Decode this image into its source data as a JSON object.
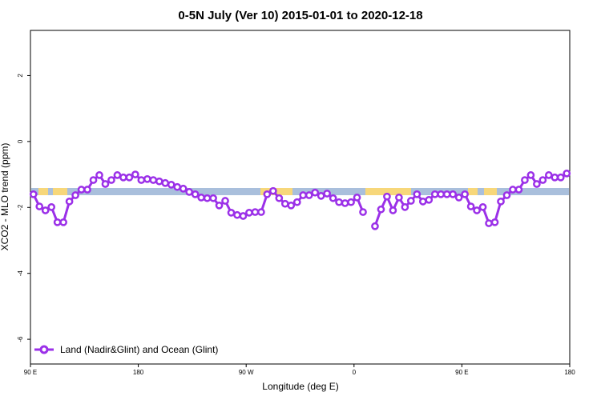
{
  "chart_data": {
    "type": "line",
    "title": "0-5N July (Ver 10)   2015-01-01 to 2020-12-18",
    "x_label": "Longitude (deg E)",
    "y_label": "XCO2 - MLO trend (ppm)",
    "xlim": [
      90,
      540
    ],
    "ylim": [
      -6.75,
      3.37
    ],
    "xticks": [
      {
        "value": 90,
        "label": "90 E"
      },
      180,
      {
        "value": 270,
        "label": "90 W"
      },
      {
        "value": 360,
        "label": "0"
      },
      {
        "value": 450,
        "label": "90 E"
      },
      {
        "value": 540,
        "label": "180"
      }
    ],
    "yticks": [
      2,
      0,
      -2,
      -4,
      -6
    ],
    "legend": "bottom-left",
    "x": [
      92.5,
      97.5,
      102.5,
      107.5,
      112.5,
      117.5,
      122.5,
      127.5,
      132.5,
      137.5,
      142.5,
      147.5,
      152.5,
      157.5,
      162.5,
      167.5,
      172.5,
      177.5,
      182.5,
      187.5,
      192.5,
      197.5,
      202.5,
      207.5,
      212.5,
      217.5,
      222.5,
      227.5,
      232.5,
      237.5,
      242.5,
      247.5,
      252.5,
      257.5,
      262.5,
      267.5,
      272.5,
      277.5,
      282.5,
      287.5,
      292.5,
      297.5,
      302.5,
      307.5,
      312.5,
      317.5,
      322.5,
      327.5,
      332.5,
      337.5,
      342.5,
      347.5,
      352.5,
      357.5,
      362.5,
      367.5,
      372.5,
      377.5,
      382.5,
      387.5,
      392.5,
      397.5,
      402.5,
      407.5,
      412.5,
      417.5,
      422.5,
      427.5,
      432.5,
      437.5,
      442.5,
      447.5,
      452.5,
      457.5,
      462.5,
      467.5,
      472.5,
      477.5,
      482.5,
      487.5,
      492.5,
      497.5,
      502.5,
      507.5,
      512.5,
      517.5,
      522.5,
      527.5,
      532.5,
      537.5
    ],
    "series": [
      {
        "name": "Land (Nadir&Glint) and Ocean (Glint)",
        "color": "#9b30e8",
        "values": [
          -1.6,
          -1.97,
          -2.09,
          -1.99,
          -2.45,
          -2.45,
          -1.82,
          -1.63,
          -1.46,
          -1.46,
          -1.17,
          -1.02,
          -1.29,
          -1.17,
          -1.02,
          -1.09,
          -1.09,
          -1.0,
          -1.17,
          -1.14,
          -1.17,
          -1.21,
          -1.26,
          -1.31,
          -1.38,
          -1.43,
          -1.53,
          -1.6,
          -1.7,
          -1.72,
          -1.72,
          -1.94,
          -1.8,
          -2.16,
          -2.23,
          -2.26,
          -2.16,
          -2.14,
          -2.14,
          -1.6,
          -1.5,
          -1.72,
          -1.89,
          -1.94,
          -1.84,
          -1.63,
          -1.63,
          -1.55,
          -1.65,
          -1.58,
          -1.72,
          -1.84,
          -1.87,
          -1.84,
          -1.7,
          -2.14,
          null,
          -2.57,
          -2.06,
          -1.67,
          -2.09,
          -1.7,
          -1.99,
          -1.8,
          -1.6,
          -1.82,
          -1.77,
          -1.6,
          -1.6,
          -1.6,
          -1.6,
          -1.7,
          -1.6,
          -1.97,
          -2.09,
          -1.99,
          -2.48,
          -2.45,
          -1.82,
          -1.63,
          -1.46,
          -1.46,
          -1.17,
          -1.02,
          -1.29,
          -1.17,
          -1.02,
          -1.09,
          -1.09,
          -0.97
        ]
      }
    ]
  }
}
